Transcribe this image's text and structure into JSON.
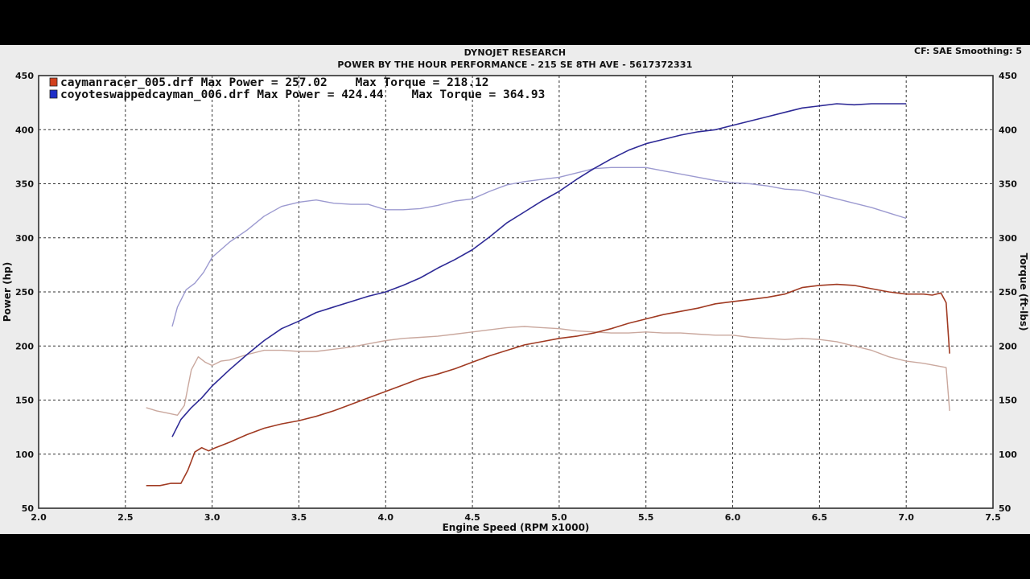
{
  "header": {
    "title": "DYNOJET RESEARCH",
    "subtitle": "POWER BY THE HOUR PERFORMANCE - 215 SE 8TH AVE - 5617372331",
    "settings": "CF: SAE  Smoothing: 5"
  },
  "colors": {
    "background": "#ececec",
    "plot_background": "#ffffff",
    "run1_power": "#a03a22",
    "run1_torque": "#caa89e",
    "run2_power": "#2e2a96",
    "run2_torque": "#9c9ad0",
    "legend_run1_swatch": "#d2401c",
    "legend_run2_swatch": "#2030c8"
  },
  "chart_data": {
    "type": "line",
    "xlabel": "Engine Speed (RPM x1000)",
    "ylabel": "Power (hp)",
    "y2label": "Torque (ft-lbs)",
    "xlim": [
      2.0,
      7.5
    ],
    "ylim": [
      50,
      450
    ],
    "y2lim": [
      50,
      450
    ],
    "x_ticks": [
      "2.0",
      "2.5",
      "3.0",
      "3.5",
      "4.0",
      "4.5",
      "5.0",
      "5.5",
      "6.0",
      "6.5",
      "7.0",
      "7.5"
    ],
    "y_ticks": [
      "50",
      "100",
      "150",
      "200",
      "250",
      "300",
      "350",
      "400",
      "450"
    ],
    "y2_ticks": [
      "50",
      "100",
      "150",
      "200",
      "250",
      "300",
      "350",
      "400",
      "450"
    ],
    "grid": true,
    "legend": [
      {
        "label": "caymanracer_005.drf Max Power = 257.02    Max Torque = 218.12"
      },
      {
        "label": "coyoteswappedcayman_006.drf Max Power = 424.44    Max Torque = 364.93"
      }
    ],
    "series": [
      {
        "name": "caymanracer_005.drf",
        "kind": "power",
        "points": [
          [
            2.62,
            71
          ],
          [
            2.7,
            71
          ],
          [
            2.76,
            73
          ],
          [
            2.82,
            73
          ],
          [
            2.86,
            85
          ],
          [
            2.9,
            102
          ],
          [
            2.94,
            106
          ],
          [
            2.98,
            103
          ],
          [
            3.02,
            106
          ],
          [
            3.1,
            111
          ],
          [
            3.2,
            118
          ],
          [
            3.3,
            124
          ],
          [
            3.4,
            128
          ],
          [
            3.5,
            131
          ],
          [
            3.6,
            135
          ],
          [
            3.7,
            140
          ],
          [
            3.8,
            146
          ],
          [
            3.9,
            152
          ],
          [
            4.0,
            158
          ],
          [
            4.1,
            164
          ],
          [
            4.2,
            170
          ],
          [
            4.3,
            174
          ],
          [
            4.4,
            179
          ],
          [
            4.5,
            185
          ],
          [
            4.6,
            191
          ],
          [
            4.7,
            196
          ],
          [
            4.8,
            201
          ],
          [
            4.9,
            204
          ],
          [
            5.0,
            207
          ],
          [
            5.1,
            209
          ],
          [
            5.2,
            212
          ],
          [
            5.3,
            216
          ],
          [
            5.4,
            221
          ],
          [
            5.5,
            225
          ],
          [
            5.6,
            229
          ],
          [
            5.7,
            232
          ],
          [
            5.8,
            235
          ],
          [
            5.9,
            239
          ],
          [
            6.0,
            241
          ],
          [
            6.1,
            243
          ],
          [
            6.2,
            245
          ],
          [
            6.3,
            248
          ],
          [
            6.4,
            254
          ],
          [
            6.5,
            256
          ],
          [
            6.6,
            257
          ],
          [
            6.7,
            256
          ],
          [
            6.8,
            253
          ],
          [
            6.9,
            250
          ],
          [
            7.0,
            248
          ],
          [
            7.1,
            248
          ],
          [
            7.15,
            247
          ],
          [
            7.2,
            249
          ],
          [
            7.23,
            240
          ],
          [
            7.25,
            193
          ]
        ]
      },
      {
        "name": "caymanracer_005.drf",
        "kind": "torque",
        "points": [
          [
            2.62,
            143
          ],
          [
            2.68,
            140
          ],
          [
            2.74,
            138
          ],
          [
            2.8,
            136
          ],
          [
            2.84,
            145
          ],
          [
            2.88,
            178
          ],
          [
            2.92,
            190
          ],
          [
            2.96,
            185
          ],
          [
            3.0,
            182
          ],
          [
            3.05,
            186
          ],
          [
            3.1,
            187
          ],
          [
            3.2,
            192
          ],
          [
            3.3,
            196
          ],
          [
            3.4,
            196
          ],
          [
            3.5,
            195
          ],
          [
            3.6,
            195
          ],
          [
            3.7,
            197
          ],
          [
            3.8,
            199
          ],
          [
            3.9,
            202
          ],
          [
            4.0,
            205
          ],
          [
            4.1,
            207
          ],
          [
            4.2,
            208
          ],
          [
            4.3,
            209
          ],
          [
            4.4,
            211
          ],
          [
            4.5,
            213
          ],
          [
            4.6,
            215
          ],
          [
            4.7,
            217
          ],
          [
            4.8,
            218
          ],
          [
            4.9,
            217
          ],
          [
            5.0,
            216
          ],
          [
            5.1,
            214
          ],
          [
            5.2,
            213
          ],
          [
            5.3,
            212
          ],
          [
            5.4,
            212
          ],
          [
            5.5,
            213
          ],
          [
            5.6,
            212
          ],
          [
            5.7,
            212
          ],
          [
            5.8,
            211
          ],
          [
            5.9,
            210
          ],
          [
            6.0,
            210
          ],
          [
            6.1,
            208
          ],
          [
            6.2,
            207
          ],
          [
            6.3,
            206
          ],
          [
            6.4,
            207
          ],
          [
            6.5,
            206
          ],
          [
            6.6,
            204
          ],
          [
            6.7,
            200
          ],
          [
            6.8,
            196
          ],
          [
            6.9,
            190
          ],
          [
            7.0,
            186
          ],
          [
            7.1,
            184
          ],
          [
            7.2,
            181
          ],
          [
            7.23,
            180
          ],
          [
            7.25,
            140
          ]
        ]
      },
      {
        "name": "coyoteswappedcayman_006.drf",
        "kind": "power",
        "points": [
          [
            2.77,
            116
          ],
          [
            2.82,
            132
          ],
          [
            2.88,
            143
          ],
          [
            2.94,
            152
          ],
          [
            3.0,
            163
          ],
          [
            3.1,
            178
          ],
          [
            3.2,
            192
          ],
          [
            3.3,
            205
          ],
          [
            3.4,
            216
          ],
          [
            3.5,
            223
          ],
          [
            3.6,
            231
          ],
          [
            3.7,
            236
          ],
          [
            3.8,
            241
          ],
          [
            3.9,
            246
          ],
          [
            4.0,
            250
          ],
          [
            4.1,
            256
          ],
          [
            4.2,
            263
          ],
          [
            4.3,
            272
          ],
          [
            4.4,
            280
          ],
          [
            4.5,
            289
          ],
          [
            4.6,
            301
          ],
          [
            4.7,
            314
          ],
          [
            4.8,
            324
          ],
          [
            4.9,
            334
          ],
          [
            5.0,
            343
          ],
          [
            5.1,
            354
          ],
          [
            5.2,
            364
          ],
          [
            5.3,
            373
          ],
          [
            5.4,
            381
          ],
          [
            5.5,
            387
          ],
          [
            5.6,
            391
          ],
          [
            5.7,
            395
          ],
          [
            5.8,
            398
          ],
          [
            5.9,
            400
          ],
          [
            6.0,
            404
          ],
          [
            6.1,
            408
          ],
          [
            6.2,
            412
          ],
          [
            6.3,
            416
          ],
          [
            6.4,
            420
          ],
          [
            6.5,
            422
          ],
          [
            6.6,
            424
          ],
          [
            6.7,
            423
          ],
          [
            6.8,
            424
          ],
          [
            6.9,
            424
          ],
          [
            7.0,
            424
          ]
        ]
      },
      {
        "name": "coyoteswappedcayman_006.drf",
        "kind": "torque",
        "points": [
          [
            2.77,
            218
          ],
          [
            2.8,
            236
          ],
          [
            2.85,
            252
          ],
          [
            2.9,
            258
          ],
          [
            2.95,
            268
          ],
          [
            3.0,
            282
          ],
          [
            3.1,
            296
          ],
          [
            3.2,
            307
          ],
          [
            3.3,
            320
          ],
          [
            3.4,
            329
          ],
          [
            3.5,
            333
          ],
          [
            3.6,
            335
          ],
          [
            3.7,
            332
          ],
          [
            3.8,
            331
          ],
          [
            3.9,
            331
          ],
          [
            4.0,
            326
          ],
          [
            4.1,
            326
          ],
          [
            4.2,
            327
          ],
          [
            4.3,
            330
          ],
          [
            4.4,
            334
          ],
          [
            4.5,
            336
          ],
          [
            4.6,
            343
          ],
          [
            4.7,
            349
          ],
          [
            4.8,
            352
          ],
          [
            4.9,
            354
          ],
          [
            5.0,
            356
          ],
          [
            5.1,
            360
          ],
          [
            5.2,
            364
          ],
          [
            5.3,
            365
          ],
          [
            5.4,
            365
          ],
          [
            5.5,
            365
          ],
          [
            5.6,
            362
          ],
          [
            5.7,
            359
          ],
          [
            5.8,
            356
          ],
          [
            5.9,
            353
          ],
          [
            6.0,
            351
          ],
          [
            6.1,
            350
          ],
          [
            6.2,
            348
          ],
          [
            6.3,
            345
          ],
          [
            6.4,
            344
          ],
          [
            6.5,
            340
          ],
          [
            6.6,
            336
          ],
          [
            6.7,
            332
          ],
          [
            6.8,
            328
          ],
          [
            6.9,
            323
          ],
          [
            7.0,
            318
          ]
        ]
      }
    ]
  }
}
